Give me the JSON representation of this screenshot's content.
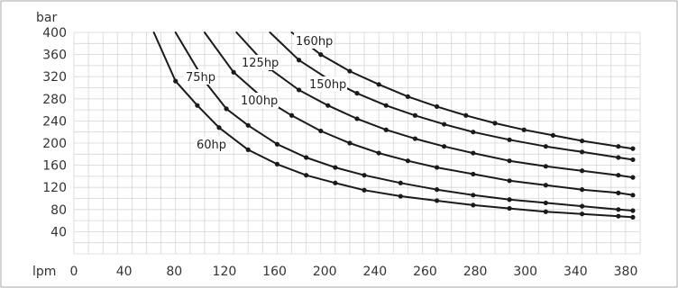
{
  "chart_data": {
    "type": "line",
    "title": "",
    "xlabel": "lpm",
    "ylabel": "bar",
    "xlim": [
      0,
      390
    ],
    "ylim": [
      0,
      400
    ],
    "x_ticks": [
      0,
      40,
      80,
      120,
      160,
      200,
      240,
      260,
      280,
      300,
      340,
      380
    ],
    "y_ticks": [
      40,
      80,
      120,
      160,
      200,
      240,
      280,
      320,
      360,
      400
    ],
    "grid": true,
    "legend": "none",
    "colors": {
      "curve": "#1a1a1a",
      "grid": "#d6d6d6",
      "border": "#aaaaaa"
    },
    "series": [
      {
        "name": "60hp",
        "points": [
          [
            55,
            400
          ],
          [
            70,
            312
          ],
          [
            85,
            268
          ],
          [
            100,
            228
          ],
          [
            120,
            188
          ],
          [
            140,
            162
          ],
          [
            160,
            142
          ],
          [
            180,
            128
          ],
          [
            200,
            115
          ],
          [
            225,
            104
          ],
          [
            250,
            96
          ],
          [
            275,
            88
          ],
          [
            300,
            82
          ],
          [
            325,
            76
          ],
          [
            350,
            72
          ],
          [
            375,
            68
          ],
          [
            385,
            66
          ]
        ]
      },
      {
        "name": "75hp",
        "points": [
          [
            70,
            400
          ],
          [
            90,
            312
          ],
          [
            105,
            262
          ],
          [
            120,
            232
          ],
          [
            140,
            198
          ],
          [
            160,
            174
          ],
          [
            180,
            156
          ],
          [
            200,
            142
          ],
          [
            225,
            128
          ],
          [
            250,
            116
          ],
          [
            275,
            106
          ],
          [
            300,
            98
          ],
          [
            325,
            92
          ],
          [
            350,
            86
          ],
          [
            375,
            80
          ],
          [
            385,
            78
          ]
        ]
      },
      {
        "name": "100hp",
        "points": [
          [
            90,
            400
          ],
          [
            110,
            328
          ],
          [
            130,
            282
          ],
          [
            150,
            250
          ],
          [
            170,
            222
          ],
          [
            190,
            200
          ],
          [
            210,
            182
          ],
          [
            230,
            168
          ],
          [
            250,
            156
          ],
          [
            275,
            144
          ],
          [
            300,
            132
          ],
          [
            325,
            124
          ],
          [
            350,
            116
          ],
          [
            375,
            110
          ],
          [
            385,
            106
          ]
        ]
      },
      {
        "name": "125hp",
        "points": [
          [
            112,
            400
          ],
          [
            135,
            334
          ],
          [
            155,
            296
          ],
          [
            175,
            268
          ],
          [
            195,
            244
          ],
          [
            215,
            224
          ],
          [
            235,
            208
          ],
          [
            255,
            194
          ],
          [
            275,
            182
          ],
          [
            300,
            168
          ],
          [
            325,
            158
          ],
          [
            350,
            150
          ],
          [
            375,
            142
          ],
          [
            385,
            138
          ]
        ]
      },
      {
        "name": "150hp",
        "points": [
          [
            135,
            400
          ],
          [
            155,
            350
          ],
          [
            175,
            316
          ],
          [
            195,
            290
          ],
          [
            215,
            268
          ],
          [
            235,
            250
          ],
          [
            255,
            234
          ],
          [
            275,
            220
          ],
          [
            300,
            206
          ],
          [
            325,
            194
          ],
          [
            350,
            184
          ],
          [
            375,
            174
          ],
          [
            385,
            170
          ]
        ]
      },
      {
        "name": "160hp",
        "points": [
          [
            150,
            400
          ],
          [
            170,
            360
          ],
          [
            190,
            330
          ],
          [
            210,
            306
          ],
          [
            230,
            284
          ],
          [
            250,
            266
          ],
          [
            270,
            250
          ],
          [
            290,
            236
          ],
          [
            310,
            224
          ],
          [
            330,
            214
          ],
          [
            350,
            204
          ],
          [
            375,
            194
          ],
          [
            385,
            190
          ]
        ]
      }
    ]
  }
}
